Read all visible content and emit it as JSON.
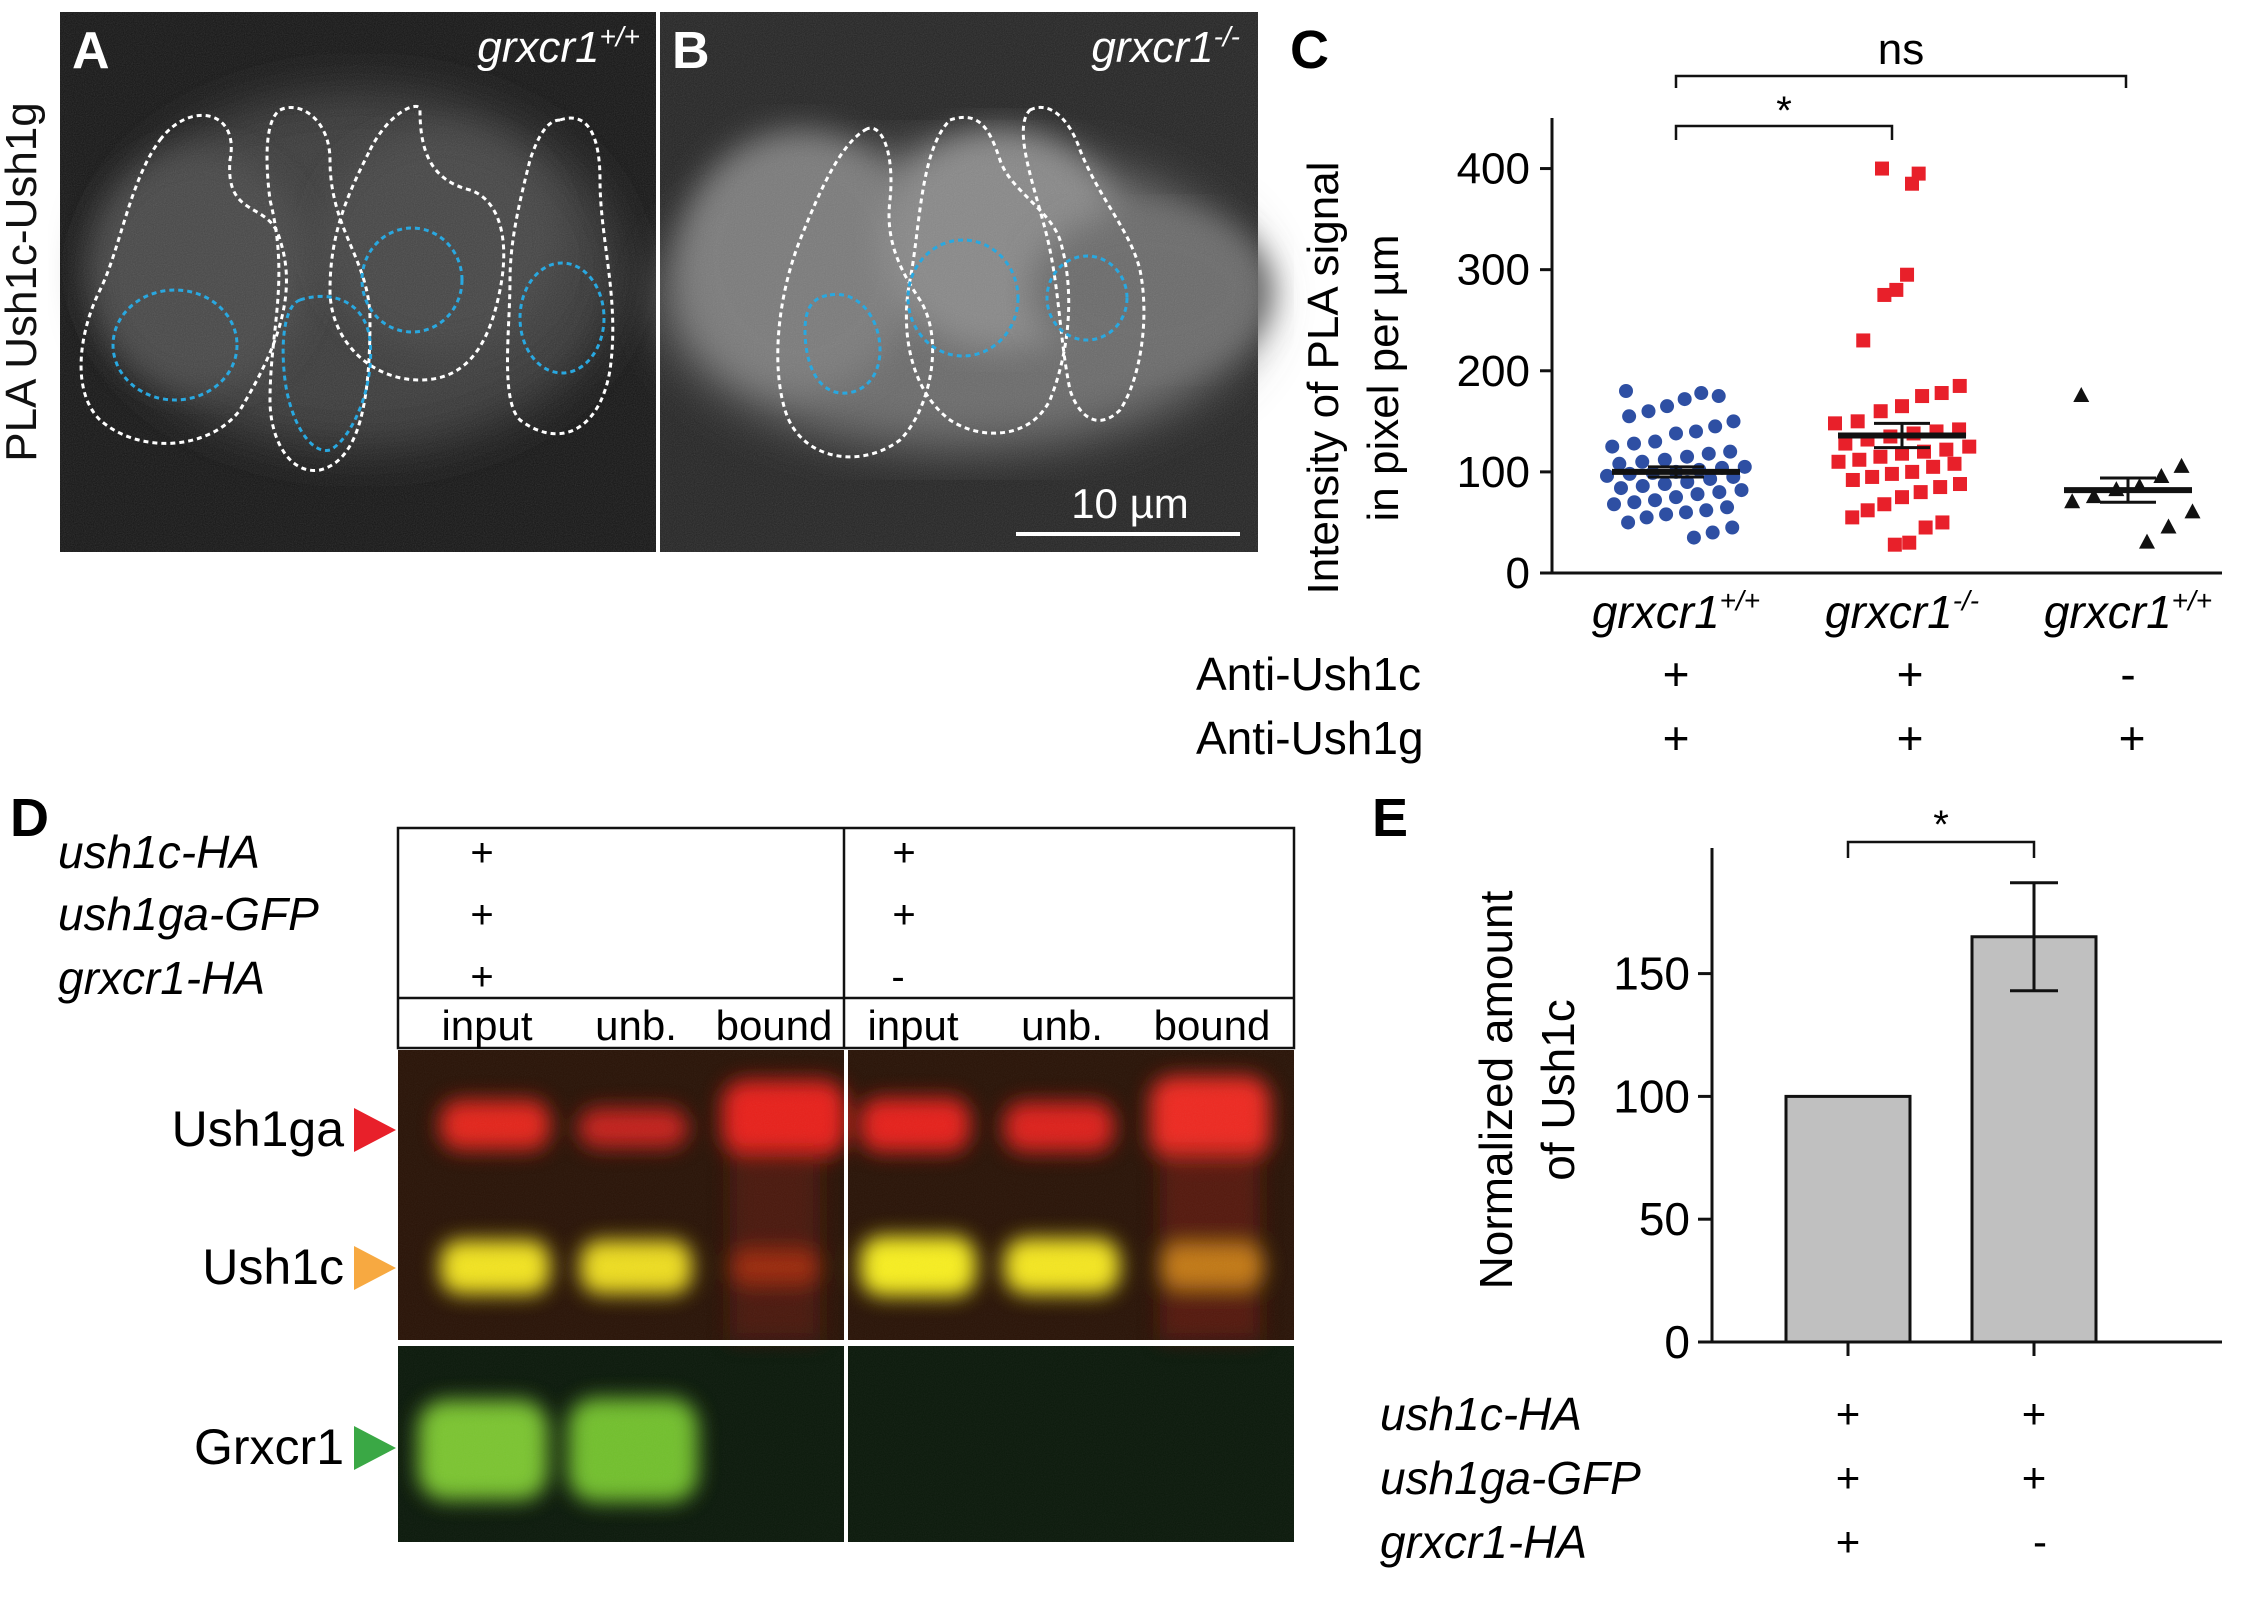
{
  "panels": {
    "A": {
      "letter": "A",
      "genotype": "grxcr1",
      "sup": "+/+"
    },
    "B": {
      "letter": "B",
      "genotype": "grxcr1",
      "sup": "-/-"
    },
    "C": {
      "letter": "C"
    },
    "D": {
      "letter": "D"
    },
    "E": {
      "letter": "E"
    }
  },
  "micrograph": {
    "side_label": "PLA Ush1c-Ush1g",
    "scale_bar": "10 µm"
  },
  "panel_c": {
    "ylabel_line1": "Intensity of PLA signal",
    "ylabel_line2": "in pixel per µm",
    "sig_inner": "*",
    "sig_outer": "ns",
    "row_labels": [
      "Anti-Ush1c",
      "Anti-Ush1g"
    ],
    "groups": [
      {
        "name": "grxcr1",
        "sup": "+/+",
        "ush1c": "+",
        "ush1g": "+"
      },
      {
        "name": "grxcr1",
        "sup": "-/-",
        "ush1c": "+",
        "ush1g": "+"
      },
      {
        "name": "grxcr1",
        "sup": "+/+",
        "ush1c": "-",
        "ush1g": "+"
      }
    ]
  },
  "panel_d": {
    "construct_labels": [
      "ush1c-HA",
      "ush1ga-GFP",
      "grxcr1-HA"
    ],
    "left_marks": [
      "+",
      "+",
      "+"
    ],
    "right_marks": [
      "+",
      "+",
      "-"
    ],
    "lanes": [
      "input",
      "unb.",
      "bound",
      "input",
      "unb.",
      "bound"
    ],
    "bands": [
      {
        "label": "Ush1ga",
        "arrow_color": "#e8202a"
      },
      {
        "label": "Ush1c",
        "arrow_color": "#f7a941"
      },
      {
        "label": "Grxcr1",
        "arrow_color": "#3aa845"
      }
    ]
  },
  "panel_e": {
    "ylabel_line1": "Normalized amount",
    "ylabel_line2": "of Ush1c",
    "sig": "*",
    "row_labels": [
      "ush1c-HA",
      "ush1ga-GFP",
      "grxcr1-HA"
    ],
    "col1_marks": [
      "+",
      "+",
      "+"
    ],
    "col2_marks": [
      "+",
      "+",
      "-"
    ]
  },
  "chart_data": [
    {
      "type": "scatter",
      "panel": "C",
      "ylabel": "Intensity of PLA signal in pixel per µm",
      "ylim": [
        0,
        450
      ],
      "yticks": [
        0,
        100,
        200,
        300,
        400
      ],
      "categories": [
        "grxcr1+/+",
        "grxcr1-/-",
        "grxcr1+/+"
      ],
      "series": [
        {
          "color": "#2e4fa3",
          "marker": "circle",
          "mean": 100,
          "sem": 5,
          "values": [
            180,
            175,
            178,
            172,
            165,
            160,
            155,
            150,
            145,
            140,
            138,
            130,
            128,
            125,
            120,
            118,
            115,
            112,
            110,
            108,
            105,
            104,
            102,
            100,
            99,
            98,
            96,
            95,
            93,
            90,
            88,
            86,
            84,
            82,
            80,
            78,
            75,
            72,
            70,
            68,
            65,
            62,
            60,
            58,
            55,
            50,
            45,
            40,
            35
          ]
        },
        {
          "color": "#e8202a",
          "marker": "square",
          "mean": 136,
          "sem": 12,
          "values": [
            400,
            395,
            385,
            295,
            280,
            275,
            230,
            185,
            178,
            175,
            165,
            160,
            150,
            148,
            142,
            140,
            138,
            135,
            132,
            128,
            125,
            122,
            120,
            118,
            115,
            112,
            110,
            108,
            105,
            100,
            98,
            95,
            92,
            88,
            85,
            80,
            75,
            68,
            62,
            55,
            50,
            45,
            30,
            28
          ]
        },
        {
          "color": "#111111",
          "marker": "triangle",
          "mean": 82,
          "sem": 12,
          "values": [
            175,
            105,
            95,
            85,
            82,
            75,
            70,
            60,
            45,
            30
          ]
        }
      ]
    },
    {
      "type": "bar",
      "panel": "E",
      "ylabel": "Normalized amount of Ush1c",
      "ylim": [
        0,
        200
      ],
      "yticks": [
        0,
        50,
        100,
        150
      ],
      "categories": [
        "ush1c-HA + / ush1ga-GFP + / grxcr1-HA +",
        "ush1c-HA + / ush1ga-GFP + / grxcr1-HA -"
      ],
      "values": [
        100,
        165
      ],
      "errors": [
        0,
        22
      ],
      "bar_color": "#c0c0c0"
    }
  ]
}
